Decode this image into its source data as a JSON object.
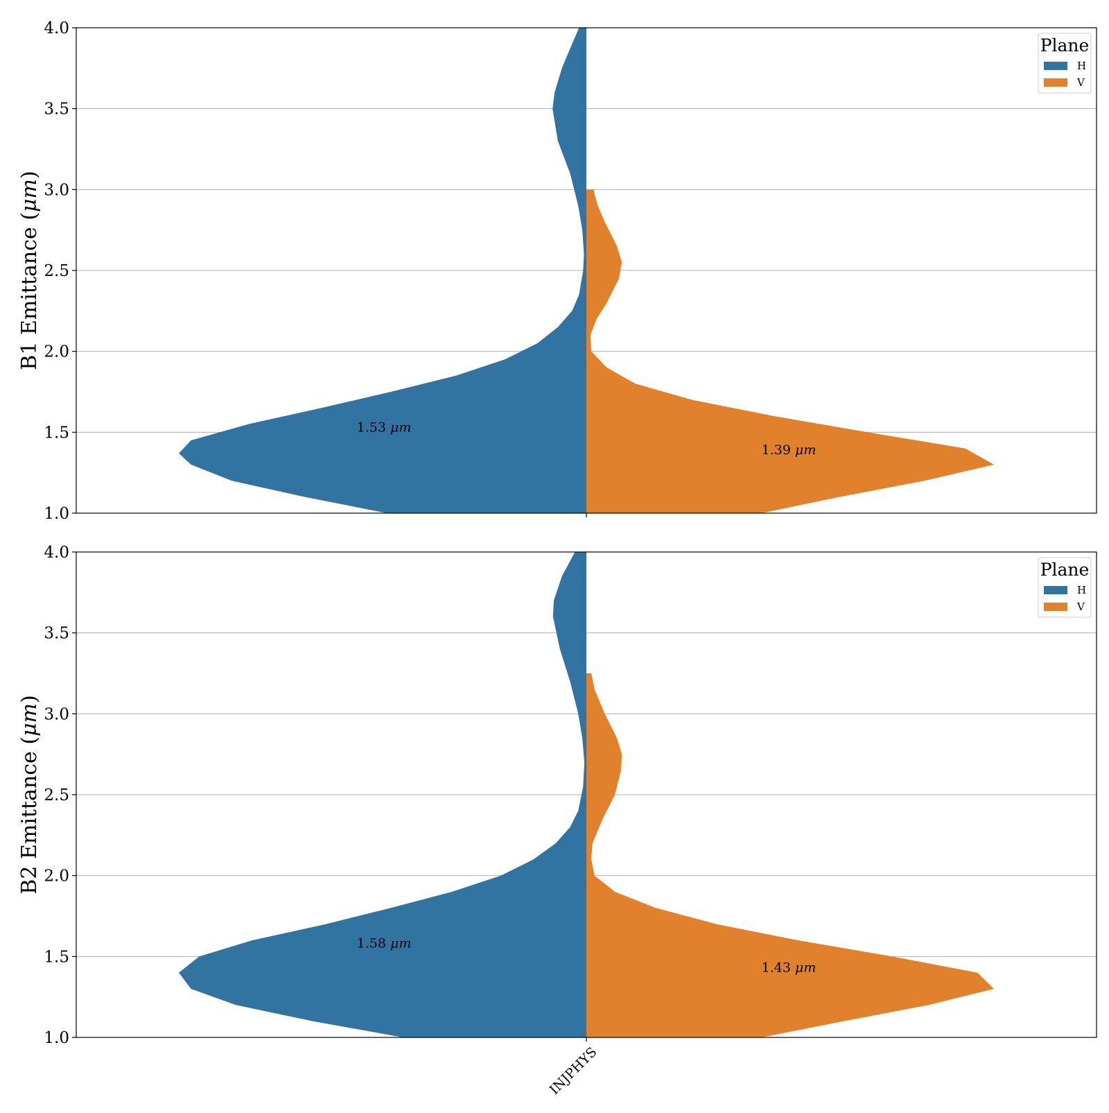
{
  "chart_data": [
    {
      "type": "violin",
      "ylabel": "B1 Emittance (μm)",
      "ylabel_parts": [
        "B1 Emittance (",
        "μm",
        ")"
      ],
      "ylim": [
        1.0,
        4.0
      ],
      "yticks": [
        "1.0",
        "1.5",
        "2.0",
        "2.5",
        "3.0",
        "3.5",
        "4.0"
      ],
      "ytick_values": [
        1.0,
        1.5,
        2.0,
        2.5,
        3.0,
        3.5,
        4.0
      ],
      "grid": "y",
      "categories": [
        "INJPHYS"
      ],
      "legend": {
        "title": "Plane",
        "placement": "top-right",
        "entries": [
          "H",
          "V"
        ]
      },
      "series": [
        {
          "name": "H",
          "side": "left",
          "color": "#3274a1",
          "median": 1.53,
          "annotation": "1.53 ",
          "annotation_unit": "μm",
          "density": [
            [
              1.0,
              0.49
            ],
            [
              1.1,
              0.69
            ],
            [
              1.2,
              0.87
            ],
            [
              1.3,
              0.97
            ],
            [
              1.37,
              1.0
            ],
            [
              1.45,
              0.97
            ],
            [
              1.55,
              0.83
            ],
            [
              1.65,
              0.65
            ],
            [
              1.75,
              0.48
            ],
            [
              1.85,
              0.32
            ],
            [
              1.95,
              0.2
            ],
            [
              2.05,
              0.12
            ],
            [
              2.15,
              0.07
            ],
            [
              2.25,
              0.035
            ],
            [
              2.35,
              0.018
            ],
            [
              2.5,
              0.008
            ],
            [
              2.6,
              0.006
            ],
            [
              2.75,
              0.01
            ],
            [
              2.9,
              0.02
            ],
            [
              3.1,
              0.04
            ],
            [
              3.3,
              0.07
            ],
            [
              3.5,
              0.083
            ],
            [
              3.6,
              0.078
            ],
            [
              3.75,
              0.06
            ],
            [
              3.9,
              0.035
            ],
            [
              4.0,
              0.018
            ]
          ]
        },
        {
          "name": "V",
          "side": "right",
          "color": "#e1812c",
          "median": 1.39,
          "annotation": "1.39 ",
          "annotation_unit": "μm",
          "density": [
            [
              1.0,
              0.43
            ],
            [
              1.1,
              0.62
            ],
            [
              1.2,
              0.83
            ],
            [
              1.3,
              1.0
            ],
            [
              1.4,
              0.93
            ],
            [
              1.5,
              0.69
            ],
            [
              1.6,
              0.46
            ],
            [
              1.7,
              0.26
            ],
            [
              1.8,
              0.12
            ],
            [
              1.9,
              0.05
            ],
            [
              2.0,
              0.012
            ],
            [
              2.1,
              0.01
            ],
            [
              2.2,
              0.025
            ],
            [
              2.3,
              0.05
            ],
            [
              2.45,
              0.08
            ],
            [
              2.55,
              0.087
            ],
            [
              2.65,
              0.075
            ],
            [
              2.8,
              0.045
            ],
            [
              2.9,
              0.028
            ],
            [
              2.97,
              0.02
            ],
            [
              3.0,
              0.018
            ]
          ]
        }
      ]
    },
    {
      "type": "violin",
      "ylabel": "B2 Emittance (μm)",
      "ylabel_parts": [
        "B2 Emittance (",
        "μm",
        ")"
      ],
      "ylim": [
        1.0,
        4.0
      ],
      "yticks": [
        "1.0",
        "1.5",
        "2.0",
        "2.5",
        "3.0",
        "3.5",
        "4.0"
      ],
      "ytick_values": [
        1.0,
        1.5,
        2.0,
        2.5,
        3.0,
        3.5,
        4.0
      ],
      "grid": "y",
      "categories": [
        "INJPHYS"
      ],
      "xtick_rotation": -45,
      "legend": {
        "title": "Plane",
        "placement": "top-right",
        "entries": [
          "H",
          "V"
        ]
      },
      "series": [
        {
          "name": "H",
          "side": "left",
          "color": "#3274a1",
          "median": 1.58,
          "annotation": "1.58 ",
          "annotation_unit": "μm",
          "density": [
            [
              1.0,
              0.45
            ],
            [
              1.1,
              0.67
            ],
            [
              1.2,
              0.86
            ],
            [
              1.3,
              0.97
            ],
            [
              1.4,
              1.0
            ],
            [
              1.5,
              0.95
            ],
            [
              1.6,
              0.82
            ],
            [
              1.7,
              0.64
            ],
            [
              1.8,
              0.48
            ],
            [
              1.9,
              0.33
            ],
            [
              2.0,
              0.21
            ],
            [
              2.1,
              0.13
            ],
            [
              2.2,
              0.075
            ],
            [
              2.3,
              0.04
            ],
            [
              2.4,
              0.02
            ],
            [
              2.55,
              0.008
            ],
            [
              2.7,
              0.005
            ],
            [
              2.85,
              0.01
            ],
            [
              3.0,
              0.02
            ],
            [
              3.2,
              0.04
            ],
            [
              3.4,
              0.065
            ],
            [
              3.6,
              0.082
            ],
            [
              3.7,
              0.08
            ],
            [
              3.85,
              0.06
            ],
            [
              4.0,
              0.028
            ]
          ]
        },
        {
          "name": "V",
          "side": "right",
          "color": "#e1812c",
          "median": 1.43,
          "annotation": "1.43 ",
          "annotation_unit": "μm",
          "density": [
            [
              1.0,
              0.43
            ],
            [
              1.1,
              0.63
            ],
            [
              1.2,
              0.84
            ],
            [
              1.3,
              1.0
            ],
            [
              1.4,
              0.96
            ],
            [
              1.5,
              0.75
            ],
            [
              1.6,
              0.52
            ],
            [
              1.7,
              0.32
            ],
            [
              1.8,
              0.17
            ],
            [
              1.9,
              0.07
            ],
            [
              2.0,
              0.02
            ],
            [
              2.1,
              0.012
            ],
            [
              2.2,
              0.015
            ],
            [
              2.35,
              0.04
            ],
            [
              2.5,
              0.07
            ],
            [
              2.65,
              0.085
            ],
            [
              2.75,
              0.087
            ],
            [
              2.85,
              0.075
            ],
            [
              3.0,
              0.045
            ],
            [
              3.15,
              0.02
            ],
            [
              3.25,
              0.012
            ]
          ]
        }
      ]
    }
  ]
}
